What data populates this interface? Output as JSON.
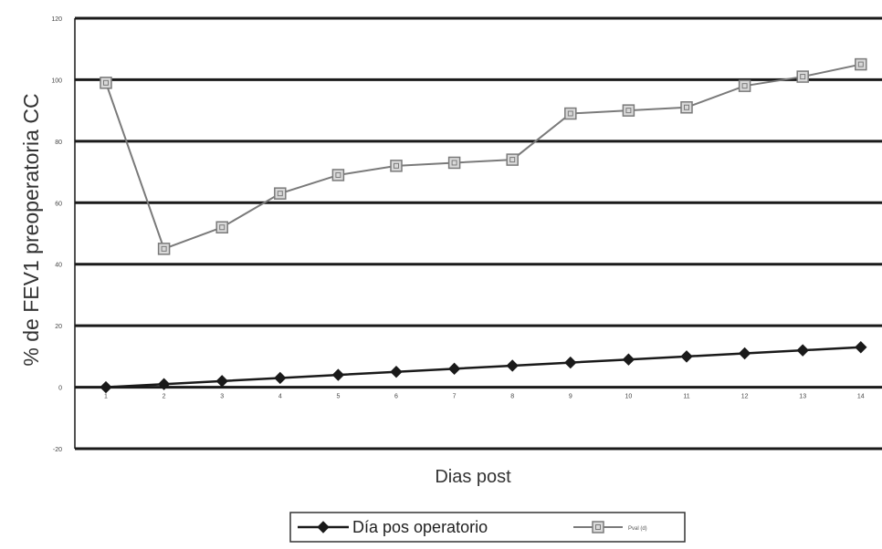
{
  "chart_data": {
    "type": "line",
    "title": "",
    "xlabel": "Dias post",
    "ylabel": "% de FEV1 preoperatoria CC",
    "x": [
      1,
      2,
      3,
      4,
      5,
      6,
      7,
      8,
      9,
      10,
      11,
      12,
      13,
      14
    ],
    "y_ticks": [
      -20,
      0,
      20,
      40,
      60,
      80,
      100,
      120
    ],
    "ylim": [
      -20,
      120
    ],
    "grid": true,
    "legend": "bottom",
    "series": [
      {
        "name": "Día pos operatorio",
        "marker": "diamond",
        "color": "#1a1a1a",
        "values": [
          0,
          1,
          2,
          3,
          4,
          5,
          6,
          7,
          8,
          9,
          10,
          11,
          12,
          13
        ]
      },
      {
        "name": "Pval (d)",
        "marker": "square",
        "color": "#7a7a7a",
        "values": [
          99,
          45,
          52,
          63,
          69,
          72,
          73,
          74,
          89,
          90,
          91,
          98,
          101,
          105
        ]
      }
    ]
  }
}
